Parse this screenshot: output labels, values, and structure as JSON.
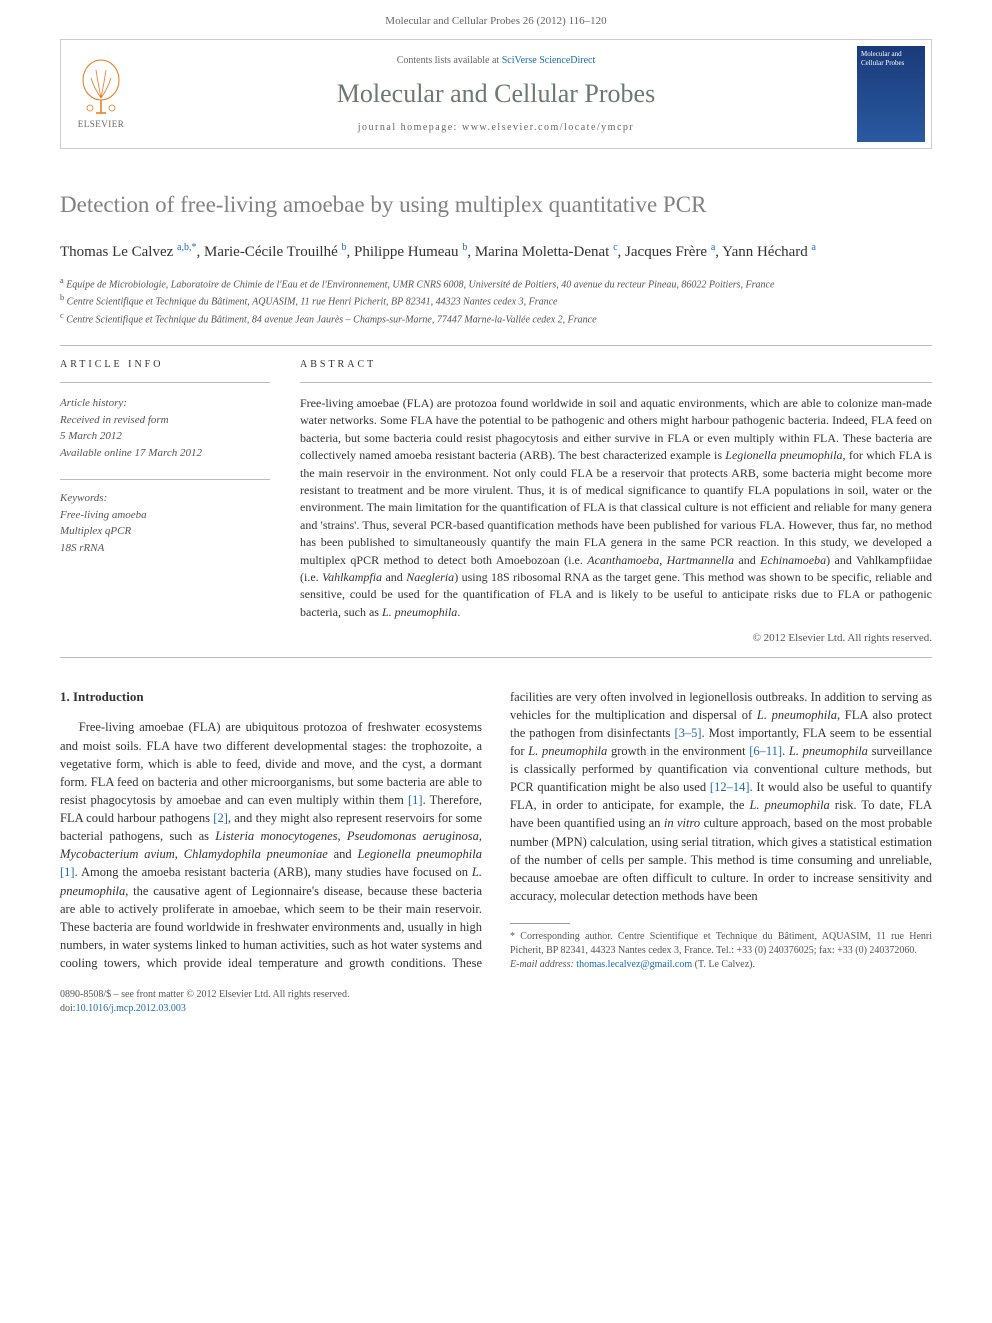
{
  "header": {
    "citation": "Molecular and Cellular Probes 26 (2012) 116–120",
    "contents_prefix": "Contents lists available at ",
    "contents_link": "SciVerse ScienceDirect",
    "journal_title": "Molecular and Cellular Probes",
    "homepage_label": "journal homepage: ",
    "homepage_url": "www.elsevier.com/locate/ymcpr",
    "elsevier_label": "ELSEVIER",
    "cover_text": "Molecular and Cellular Probes"
  },
  "article": {
    "title": "Detection of free-living amoebae by using multiplex quantitative PCR",
    "authors_html": "Thomas Le Calvez <sup>a,b,*</sup>, Marie-Cécile Trouilhé <sup>b</sup>, Philippe Humeau <sup>b</sup>, Marina Moletta-Denat <sup>c</sup>, Jacques Frère <sup>a</sup>, Yann Héchard <sup>a</sup>",
    "affiliations": {
      "a": "Equipe de Microbiologie, Laboratoire de Chimie de l'Eau et de l'Environnement, UMR CNRS 6008, Université de Poitiers, 40 avenue du recteur Pineau, 86022 Poitiers, France",
      "b": "Centre Scientifique et Technique du Bâtiment, AQUASIM, 11 rue Henri Picherit, BP 82341, 44323 Nantes cedex 3, France",
      "c": "Centre Scientifique et Technique du Bâtiment, 84 avenue Jean Jaurès – Champs-sur-Marne, 77447 Marne-la-Vallée cedex 2, France"
    }
  },
  "info": {
    "heading": "ARTICLE INFO",
    "history_label": "Article history:",
    "history_received": "Received in revised form",
    "history_received_date": "5 March 2012",
    "history_online": "Available online 17 March 2012",
    "keywords_label": "Keywords:",
    "keywords": [
      "Free-living amoeba",
      "Multiplex qPCR",
      "18S rRNA"
    ]
  },
  "abstract": {
    "heading": "ABSTRACT",
    "text": "Free-living amoebae (FLA) are protozoa found worldwide in soil and aquatic environments, which are able to colonize man-made water networks. Some FLA have the potential to be pathogenic and others might harbour pathogenic bacteria. Indeed, FLA feed on bacteria, but some bacteria could resist phagocytosis and either survive in FLA or even multiply within FLA. These bacteria are collectively named amoeba resistant bacteria (ARB). The best characterized example is Legionella pneumophila, for which FLA is the main reservoir in the environment. Not only could FLA be a reservoir that protects ARB, some bacteria might become more resistant to treatment and be more virulent. Thus, it is of medical significance to quantify FLA populations in soil, water or the environment. The main limitation for the quantification of FLA is that classical culture is not efficient and reliable for many genera and 'strains'. Thus, several PCR-based quantification methods have been published for various FLA. However, thus far, no method has been published to simultaneously quantify the main FLA genera in the same PCR reaction. In this study, we developed a multiplex qPCR method to detect both Amoebozoan (i.e. Acanthamoeba, Hartmannella and Echinamoeba) and Vahlkampfiidae (i.e. Vahlkampfia and Naegleria) using 18S ribosomal RNA as the target gene. This method was shown to be specific, reliable and sensitive, could be used for the quantification of FLA and is likely to be useful to anticipate risks due to FLA or pathogenic bacteria, such as L. pneumophila.",
    "copyright": "© 2012 Elsevier Ltd. All rights reserved."
  },
  "body": {
    "section1_heading": "1. Introduction",
    "para1_part1": "Free-living amoebae (FLA) are ubiquitous protozoa of freshwater ecosystems and moist soils. FLA have two different developmental stages: the trophozoite, a vegetative form, which is able to feed, divide and move, and the cyst, a dormant form. FLA feed on bacteria and other microorganisms, but some bacteria are able to resist phagocytosis by amoebae and can even multiply within them ",
    "ref1": "[1]",
    "para1_part2": ". Therefore, FLA could harbour pathogens ",
    "ref2": "[2]",
    "para1_part3": ", and they might also represent reservoirs for some bacterial pathogens, such as ",
    "para1_italic1": "Listeria monocytogenes, Pseudomonas aeruginosa, Mycobacterium avium, Chlamydophila pneumoniae",
    "para1_and": " and ",
    "para1_italic2": "Legionella pneumophila",
    "para1_space": " ",
    "ref1b": "[1]",
    "para1_part4": ". Among the amoeba resistant bacteria (ARB), many studies have focused on ",
    "para1_italic3": "L. pneumophila",
    "para1_part5": ", the causative agent of Legionnaire's disease, ",
    "col2_part1": "because these bacteria are able to actively proliferate in amoebae, which seem to be their main reservoir. These bacteria are found worldwide in freshwater environments and, usually in high numbers, in water systems linked to human activities, such as hot water systems and cooling towers, which provide ideal temperature and growth conditions. These facilities are very often involved in legionellosis outbreaks. In addition to serving as vehicles for the multiplication and dispersal of ",
    "col2_italic1": "L. pneumophila",
    "col2_part2": ", FLA also protect the pathogen from disinfectants ",
    "ref3_5": "[3–5]",
    "col2_part3": ". Most importantly, FLA seem to be essential for ",
    "col2_italic2": "L. pneumophila",
    "col2_part4": " growth in the environment ",
    "ref6_11": "[6–11]",
    "col2_part5": ". ",
    "col2_italic3": "L. pneumophila",
    "col2_part6": " surveillance is classically performed by quantification via conventional culture methods, but PCR quantification might be also used ",
    "ref12_14": "[12–14]",
    "col2_part7": ". It would also be useful to quantify FLA, in order to anticipate, for example, the ",
    "col2_italic4": "L. pneumophila",
    "col2_part8": " risk. To date, FLA have been quantified using an ",
    "col2_italic5": "in vitro",
    "col2_part9": " culture approach, based on the most probable number (MPN) calculation, using serial titration, which gives a statistical estimation of the number of cells per sample. This method is time consuming and unreliable, because amoebae are often difficult to culture. In order to increase sensitivity and accuracy, molecular detection methods have been"
  },
  "footnote": {
    "corr_label": "* Corresponding author. Centre Scientifique et Technique du Bâtiment, AQUASIM, 11 rue Henri Picherit, BP 82341, 44323 Nantes cedex 3, France. Tel.: +33 (0) 240376025; fax: +33 (0) 240372060.",
    "email_label": "E-mail address: ",
    "email": "thomas.lecalvez@gmail.com",
    "email_suffix": " (T. Le Calvez)."
  },
  "footer": {
    "issn": "0890-8508/$ – see front matter © 2012 Elsevier Ltd. All rights reserved.",
    "doi_label": "doi:",
    "doi": "10.1016/j.mcp.2012.03.003"
  },
  "colors": {
    "link": "#1a6bb3",
    "title_gray": "#818181",
    "journal_green": "#6b7a6e",
    "text": "#333333",
    "muted": "#555555",
    "border": "#bbbbbb"
  }
}
